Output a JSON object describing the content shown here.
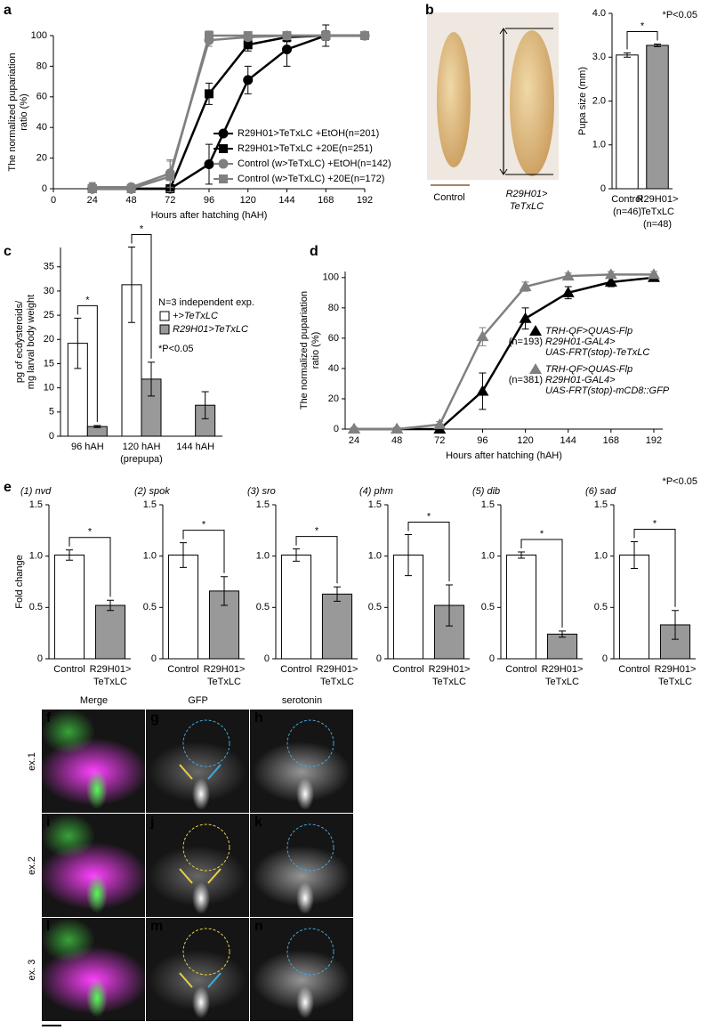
{
  "chart_data": [
    {
      "panel": "a",
      "type": "line",
      "ylabel": [
        "The normalized pupariation",
        "ratio (%)"
      ],
      "xlabel": "Hours after hatching (hAH)",
      "x": [
        24,
        48,
        72,
        96,
        120,
        144,
        168,
        192
      ],
      "xlim": [
        0,
        192
      ],
      "xticks": [
        0,
        24,
        48,
        72,
        96,
        120,
        144,
        168,
        192
      ],
      "ylim": [
        0,
        100
      ],
      "yticks": [
        0,
        20,
        40,
        60,
        80,
        100
      ],
      "series": [
        {
          "name": "R29H01>TeTxLC +EtOH(n=201)",
          "color": "#000000",
          "marker": "circle",
          "values": [
            0,
            0,
            0,
            16,
            71,
            91,
            100,
            100
          ],
          "errors": [
            2,
            1,
            1,
            13,
            9,
            11,
            7,
            2
          ]
        },
        {
          "name": "R29H01>TeTxLC +20E(n=251)",
          "color": "#000000",
          "marker": "square",
          "values": [
            0,
            0,
            0,
            62,
            94,
            99,
            100,
            100
          ],
          "errors": [
            1,
            1,
            1,
            7,
            4,
            3,
            3,
            1
          ]
        },
        {
          "name": "Control (w>TeTxLC) +EtOH(n=142)",
          "color": "#808080",
          "marker": "circle",
          "values": [
            1,
            1,
            10,
            97,
            99,
            100,
            100,
            100
          ],
          "errors": [
            3,
            2,
            9,
            4,
            2,
            1,
            1,
            1
          ]
        },
        {
          "name": "Control (w>TeTxLC) +20E(n=172)",
          "color": "#808080",
          "marker": "square",
          "values": [
            0,
            0,
            8,
            100,
            100,
            100,
            100,
            100
          ],
          "errors": [
            1,
            1,
            10,
            3,
            2,
            1,
            1,
            1
          ]
        }
      ]
    },
    {
      "panel": "b",
      "type": "bar",
      "ylabel": [
        "Pupa size (mm)"
      ],
      "categories": [
        [
          "Control",
          "(n=46)"
        ],
        [
          "R29H01>",
          "TeTxLC",
          "(n=48)"
        ]
      ],
      "values": [
        3.05,
        3.27
      ],
      "errors": [
        0.05,
        0.03
      ],
      "colors": [
        "#ffffff",
        "#999999"
      ],
      "ylim": [
        0,
        4
      ],
      "yticks": [
        0,
        {
          "value": 1,
          "label": "1.0"
        },
        {
          "value": 2,
          "label": "2.0"
        },
        {
          "value": 3,
          "label": "3.0"
        },
        {
          "value": 4,
          "label": "4.0"
        }
      ],
      "significance": "*",
      "note": "*P<0.05"
    },
    {
      "panel": "c",
      "type": "bar",
      "ylabel": [
        "pg of ecdysteroids/",
        "mg larval body weight"
      ],
      "categories": [
        [
          "96 hAH"
        ],
        [
          "120 hAH",
          "(prepupa)"
        ],
        [
          "144 hAH"
        ]
      ],
      "series": [
        {
          "name": "+>TeTxLC",
          "color": "#ffffff",
          "values": [
            19.2,
            31.3,
            null
          ],
          "errors": [
            5.2,
            7.8,
            null
          ]
        },
        {
          "name": "R29H01>TeTxLC",
          "color": "#999999",
          "values": [
            2.0,
            11.8,
            6.4
          ],
          "errors": [
            0.2,
            3.5,
            2.8
          ]
        }
      ],
      "ylim": [
        0,
        39
      ],
      "yticks": [
        0,
        5,
        10,
        15,
        20,
        25,
        30,
        35
      ],
      "legend_title": "N=3 independent exp.",
      "significance": [
        "*",
        "*"
      ],
      "note": "*P<0.05"
    },
    {
      "panel": "d",
      "type": "line",
      "ylabel": [
        "The normalized pupariation",
        "ratio (%)"
      ],
      "xlabel": "Hours after hatching (hAH)",
      "x": [
        24,
        48,
        72,
        96,
        120,
        144,
        168,
        192
      ],
      "xlim": [
        19,
        197
      ],
      "xticks": [
        24,
        48,
        72,
        96,
        120,
        144,
        168,
        192
      ],
      "ylim": [
        0,
        104
      ],
      "yticks": [
        0,
        20,
        40,
        60,
        80,
        100
      ],
      "series": [
        {
          "name": [
            "TRH-QF>QUAS-Flp",
            "R29H01-GAL4>",
            "UAS-FRT(stop)-TeTxLC"
          ],
          "n_label": "(n=193)",
          "color": "#000000",
          "marker": "triangle",
          "values": [
            0,
            0,
            0,
            25,
            73,
            90,
            97,
            100
          ],
          "errors": [
            1,
            1,
            1,
            12,
            7,
            4,
            3,
            2
          ]
        },
        {
          "name": [
            "TRH-QF>QUAS-Flp",
            "R29H01-GAL4>",
            "UAS-FRT(stop)-mCD8::GFP"
          ],
          "n_label": "(n=381)",
          "color": "#808080",
          "marker": "triangle",
          "values": [
            0,
            0,
            3,
            61,
            94,
            101,
            102,
            102
          ],
          "errors": [
            1,
            1,
            2,
            6,
            3,
            2,
            2,
            2
          ]
        }
      ]
    },
    {
      "panel": "e",
      "type": "bar",
      "title": "(1) nvd",
      "ylabel": [
        "Fold change"
      ],
      "categories": [
        [
          "Control"
        ],
        [
          "R29H01>",
          "TeTxLC"
        ]
      ],
      "values": [
        1.01,
        0.52
      ],
      "errors": [
        0.05,
        0.05
      ],
      "colors": [
        "#ffffff",
        "#999999"
      ],
      "ylim": [
        0,
        1.5
      ],
      "yticks": [
        0,
        0.5,
        {
          "value": 1,
          "label": "1.0"
        },
        1.5
      ],
      "significance": "*"
    },
    {
      "type": "bar",
      "title": "(2) spok",
      "categories": [
        [
          "Control"
        ],
        [
          "R29H01>",
          "TeTxLC"
        ]
      ],
      "values": [
        1.01,
        0.66
      ],
      "errors": [
        0.12,
        0.14
      ],
      "colors": [
        "#ffffff",
        "#999999"
      ],
      "ylim": [
        0,
        1.5
      ],
      "yticks": [
        0,
        0.5,
        {
          "value": 1,
          "label": "1.0"
        },
        1.5
      ],
      "significance": "*"
    },
    {
      "type": "bar",
      "title": "(3) sro",
      "categories": [
        [
          "Control"
        ],
        [
          "R29H01>",
          "TeTxLC"
        ]
      ],
      "values": [
        1.01,
        0.63
      ],
      "errors": [
        0.06,
        0.07
      ],
      "colors": [
        "#ffffff",
        "#999999"
      ],
      "ylim": [
        0,
        1.5
      ],
      "yticks": [
        0,
        0.5,
        {
          "value": 1,
          "label": "1.0"
        },
        1.5
      ],
      "significance": "*"
    },
    {
      "type": "bar",
      "title": "(4) phm",
      "categories": [
        [
          "Control"
        ],
        [
          "R29H01>",
          "TeTxLC"
        ]
      ],
      "values": [
        1.01,
        0.52
      ],
      "errors": [
        0.2,
        0.2
      ],
      "colors": [
        "#ffffff",
        "#999999"
      ],
      "ylim": [
        0,
        1.5
      ],
      "yticks": [
        0,
        0.5,
        {
          "value": 1,
          "label": "1.0"
        },
        1.5
      ],
      "significance": "*"
    },
    {
      "type": "bar",
      "title": "(5) dib",
      "categories": [
        [
          "Control"
        ],
        [
          "R29H01>",
          "TeTxLC"
        ]
      ],
      "values": [
        1.01,
        0.24
      ],
      "errors": [
        0.03,
        0.03
      ],
      "colors": [
        "#ffffff",
        "#999999"
      ],
      "ylim": [
        0,
        1.5
      ],
      "yticks": [
        0,
        0.5,
        {
          "value": 1,
          "label": "1.0"
        },
        1.5
      ],
      "significance": "*"
    },
    {
      "type": "bar",
      "title": "(6) sad",
      "categories": [
        [
          "Control"
        ],
        [
          "R29H01>",
          "TeTxLC"
        ]
      ],
      "values": [
        1.01,
        0.33
      ],
      "errors": [
        0.13,
        0.14
      ],
      "colors": [
        "#ffffff",
        "#999999"
      ],
      "ylim": [
        0,
        1.5
      ],
      "yticks": [
        0,
        0.5,
        {
          "value": 1,
          "label": "1.0"
        },
        1.5
      ],
      "significance": "*",
      "note": "*P<0.05"
    }
  ],
  "pupa_photo": {
    "control_label": "Control",
    "mutant_label": [
      "R29H01>",
      "TeTxLC"
    ]
  },
  "micrographs": {
    "column_titles": [
      "Merge",
      "GFP",
      "serotonin"
    ],
    "column_title_colors": [
      "#000000",
      "#22bb22",
      "#d020d0"
    ],
    "row_labels": [
      "ex.1",
      "ex.2",
      "ex. 3"
    ],
    "panels": [
      [
        "f",
        "g",
        "h"
      ],
      [
        "i",
        "j",
        "k"
      ],
      [
        "l",
        "m",
        "n"
      ]
    ]
  }
}
